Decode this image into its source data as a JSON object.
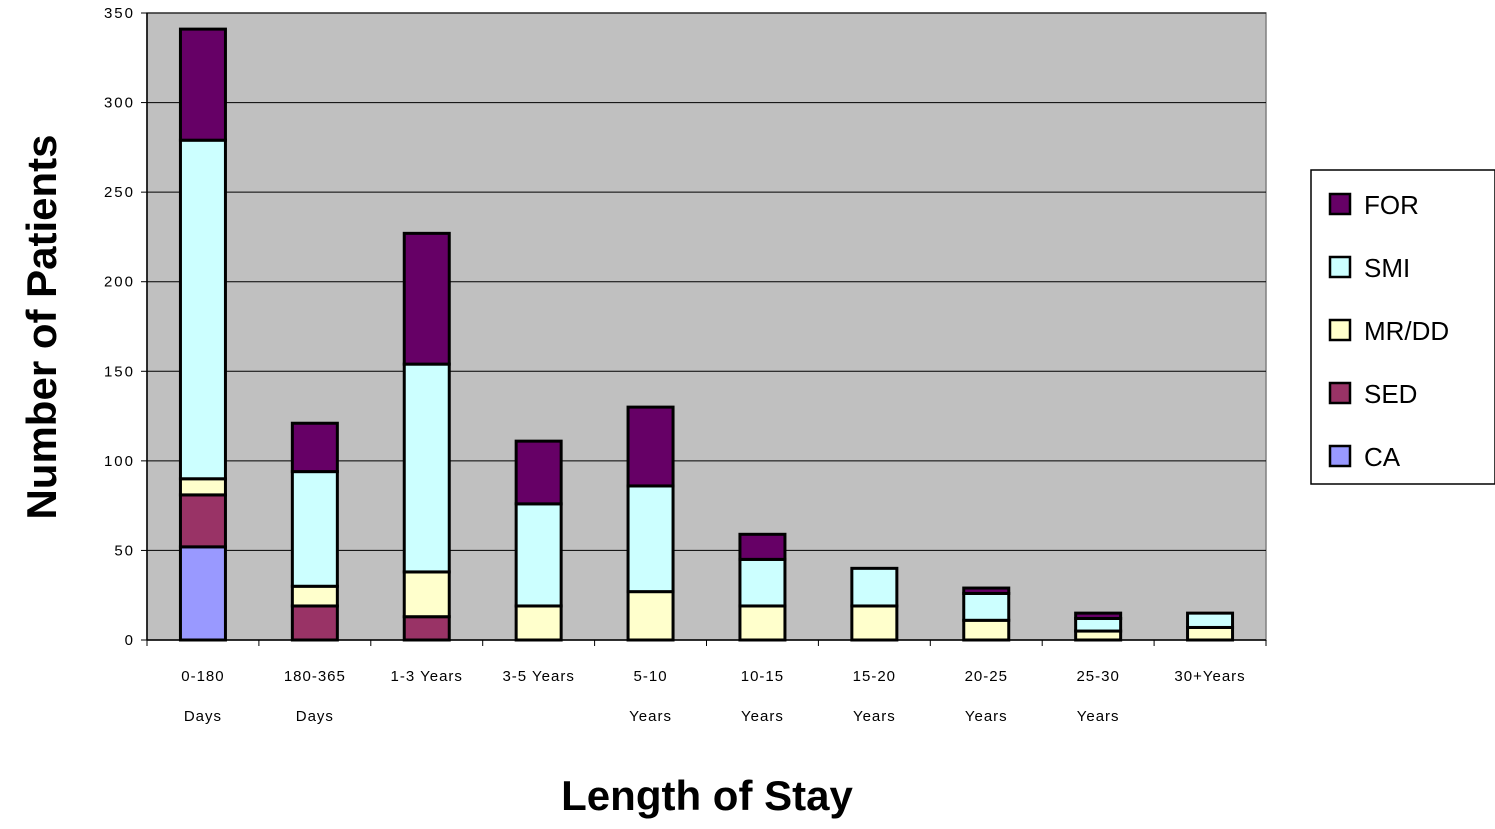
{
  "chart_data": {
    "type": "bar",
    "stacked": true,
    "xlabel": "Length of Stay",
    "ylabel": "Number of Patients",
    "ylim": [
      0,
      350
    ],
    "yticks": [
      0,
      50,
      100,
      150,
      200,
      250,
      300,
      350
    ],
    "grid": true,
    "legend_position": "right",
    "categories": [
      [
        "0-180",
        "Days"
      ],
      [
        "180-365",
        "Days"
      ],
      [
        "1-3 Years",
        ""
      ],
      [
        "3-5 Years",
        ""
      ],
      [
        "5-10",
        "Years"
      ],
      [
        "10-15",
        "Years"
      ],
      [
        "15-20",
        "Years"
      ],
      [
        "20-25",
        "Years"
      ],
      [
        "25-30",
        "Years"
      ],
      [
        "30+Years",
        ""
      ]
    ],
    "series": [
      {
        "name": "CA",
        "color": "#9999ff",
        "values": [
          52,
          0,
          0,
          0,
          0,
          0,
          0,
          0,
          0,
          0
        ]
      },
      {
        "name": "SED",
        "color": "#993366",
        "values": [
          29,
          19,
          13,
          0,
          0,
          0,
          0,
          0,
          0,
          0
        ]
      },
      {
        "name": "MR/DD",
        "color": "#ffffcc",
        "values": [
          9,
          11,
          25,
          19,
          27,
          19,
          19,
          11,
          5,
          7
        ]
      },
      {
        "name": "SMI",
        "color": "#ccffff",
        "values": [
          189,
          64,
          116,
          57,
          59,
          26,
          21,
          15,
          7,
          8
        ]
      },
      {
        "name": "FOR",
        "color": "#660066",
        "values": [
          62,
          27,
          73,
          35,
          44,
          14,
          0,
          3,
          3,
          0
        ]
      }
    ],
    "legend_order": [
      "FOR",
      "SMI",
      "MR/DD",
      "SED",
      "CA"
    ],
    "plot_background": "#c0c0c0"
  }
}
